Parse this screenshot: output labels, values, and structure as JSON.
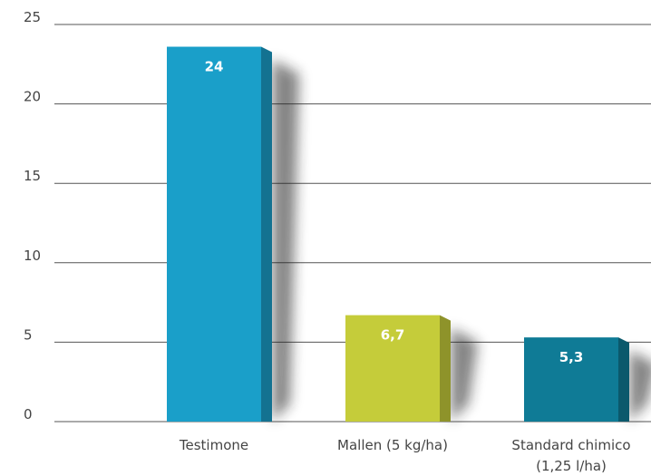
{
  "chart_data": {
    "type": "bar",
    "categories": [
      "Testimone",
      "Mallen (5 kg/ha)",
      "Standard chimico\n(1,25 l/ha)"
    ],
    "values": [
      23.6,
      6.7,
      5.3
    ],
    "value_labels": [
      "24",
      "6,7",
      "5,3"
    ],
    "colors": [
      "#1a9fc9",
      "#c5cc3a",
      "#0f7b96"
    ],
    "ylim": [
      0,
      25
    ],
    "yticks": [
      0,
      5,
      10,
      15,
      20,
      25
    ],
    "grid": true
  }
}
